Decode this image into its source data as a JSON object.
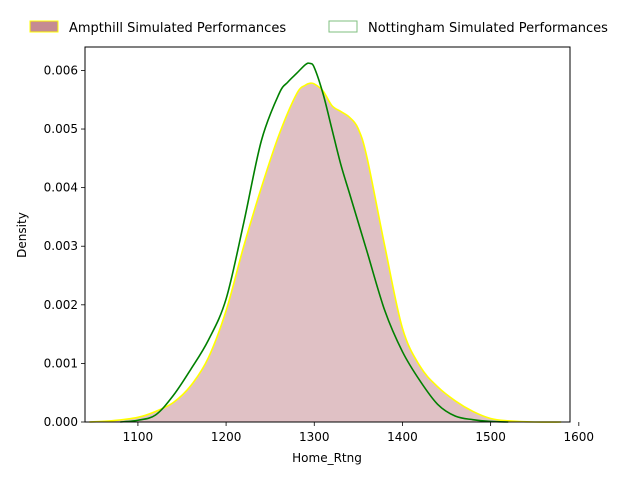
{
  "chart_data": {
    "type": "area",
    "title": "",
    "xlabel": "Home_Rtng",
    "ylabel": "Density",
    "xlim": [
      1040,
      1590
    ],
    "ylim": [
      0,
      0.0064
    ],
    "x_ticks": [
      1100,
      1200,
      1300,
      1400,
      1500,
      1600
    ],
    "x_tick_labels": [
      "1100",
      "1200",
      "1300",
      "1400",
      "1500",
      "1600"
    ],
    "y_ticks": [
      0,
      0.001,
      0.002,
      0.003,
      0.004,
      0.005,
      0.006
    ],
    "y_tick_labels": [
      "0.000",
      "0.001",
      "0.002",
      "0.003",
      "0.004",
      "0.005",
      "0.006"
    ],
    "grid": false,
    "legend_position": "top",
    "series": [
      {
        "name": "Ampthill Simulated Performances",
        "style": "filled",
        "fill_color": "#b2646e",
        "fill_opacity": 0.4,
        "line_color": "#ffff00",
        "x": [
          1045,
          1070,
          1100,
          1120,
          1140,
          1160,
          1180,
          1200,
          1220,
          1240,
          1260,
          1280,
          1290,
          1295,
          1300,
          1310,
          1320,
          1330,
          1340,
          1350,
          1360,
          1380,
          1400,
          1420,
          1440,
          1460,
          1480,
          1500,
          1520,
          1550,
          1580
        ],
        "y": [
          0,
          2e-05,
          8e-05,
          0.00018,
          0.00033,
          0.00062,
          0.0011,
          0.0019,
          0.003,
          0.004,
          0.0049,
          0.0056,
          0.00575,
          0.00578,
          0.00577,
          0.00565,
          0.0054,
          0.0053,
          0.0052,
          0.005,
          0.0045,
          0.003,
          0.0016,
          0.00095,
          0.0006,
          0.00036,
          0.00018,
          6e-05,
          2e-05,
          0,
          0
        ]
      },
      {
        "name": "Nottingham Simulated Performances",
        "style": "line",
        "line_color": "#008000",
        "x": [
          1080,
          1100,
          1120,
          1140,
          1160,
          1180,
          1200,
          1220,
          1240,
          1260,
          1270,
          1280,
          1290,
          1295,
          1300,
          1310,
          1320,
          1330,
          1340,
          1350,
          1360,
          1380,
          1400,
          1420,
          1440,
          1460,
          1480,
          1500,
          1520
        ],
        "y": [
          0,
          3e-05,
          0.00012,
          0.00045,
          0.0009,
          0.0014,
          0.0021,
          0.0034,
          0.0048,
          0.0056,
          0.0058,
          0.00595,
          0.0061,
          0.00612,
          0.00605,
          0.0056,
          0.005,
          0.0044,
          0.0039,
          0.0034,
          0.0029,
          0.0019,
          0.0012,
          0.0007,
          0.0003,
          0.0001,
          4e-05,
          1e-05,
          0
        ]
      }
    ]
  }
}
